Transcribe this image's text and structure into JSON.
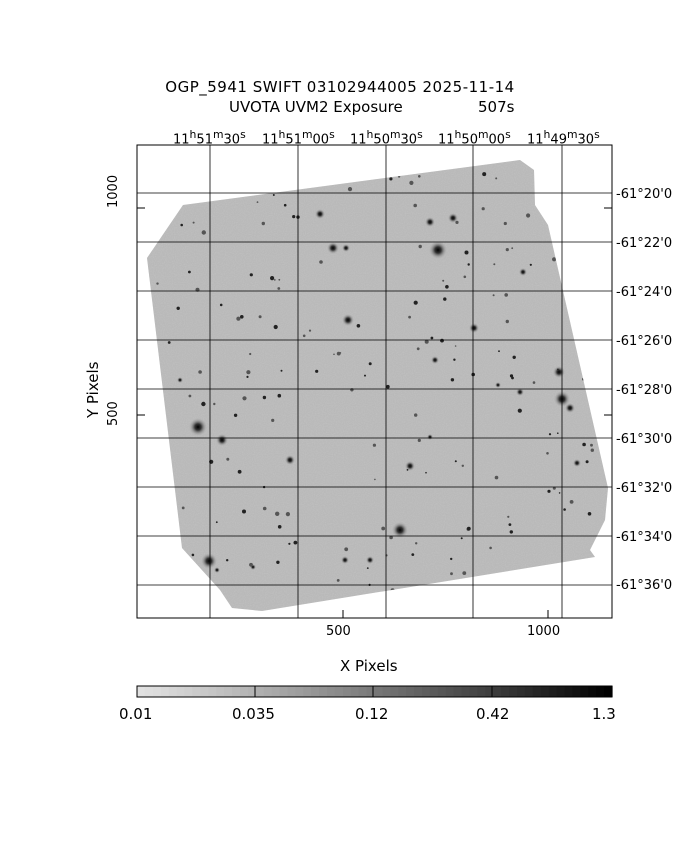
{
  "header": {
    "line1": "OGP_5941 SWIFT 03102944005 2025-11-14",
    "line2_instrument": "UVOTA UVM2 Exposure",
    "line2_exposure": "507s"
  },
  "axes": {
    "x_label": "X Pixels",
    "y_label": "Y Pixels",
    "x_ticks": [
      "500",
      "1000"
    ],
    "y_ticks": [
      "1000",
      "500"
    ]
  },
  "ra_labels": [
    {
      "h": "11",
      "hs": "h",
      "m": "51",
      "ms": "m",
      "s": "30",
      "ss": "s"
    },
    {
      "h": "11",
      "hs": "h",
      "m": "51",
      "ms": "m",
      "s": "00",
      "ss": "s"
    },
    {
      "h": "11",
      "hs": "h",
      "m": "50",
      "ms": "m",
      "s": "30",
      "ss": "s"
    },
    {
      "h": "11",
      "hs": "h",
      "m": "50",
      "ms": "m",
      "s": "00",
      "ss": "s"
    },
    {
      "h": "11",
      "hs": "h",
      "m": "49",
      "ms": "m",
      "s": "30",
      "ss": "s"
    }
  ],
  "dec_labels": [
    "-61°20'0",
    "-61°22'0",
    "-61°24'0",
    "-61°26'0",
    "-61°28'0",
    "-61°30'0",
    "-61°32'0",
    "-61°34'0",
    "-61°36'0"
  ],
  "colorbar": {
    "tick_labels": [
      "0.01",
      "0.035",
      "0.12",
      "0.42",
      "1.3"
    ]
  },
  "colors": {
    "frame": "#000000",
    "background": "#ffffff",
    "sky": "#b4b4b4"
  }
}
